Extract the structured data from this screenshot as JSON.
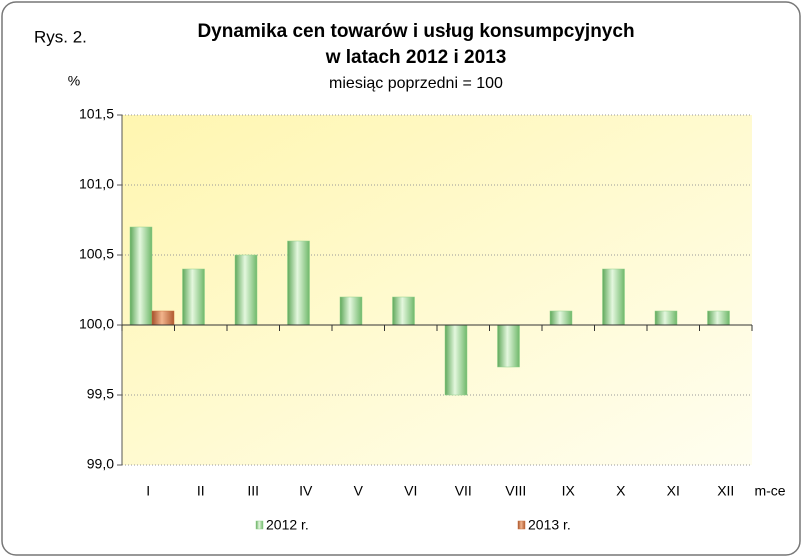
{
  "chart_data": {
    "type": "bar",
    "label": "Rys. 2.",
    "title": [
      "Dynamika cen towarów i usług konsumpcyjnych",
      "w latach 2012 i 2013"
    ],
    "subtitle": "miesiąc poprzedni = 100",
    "y_label": "%",
    "x_label": "m-ce",
    "categories": [
      "I",
      "II",
      "III",
      "IV",
      "V",
      "VI",
      "VII",
      "VIII",
      "IX",
      "X",
      "XI",
      "XII"
    ],
    "series": [
      {
        "name": "2012 r.",
        "color": "#8fd18a",
        "values": [
          100.7,
          100.4,
          100.5,
          100.6,
          100.2,
          100.2,
          99.5,
          99.7,
          100.1,
          100.4,
          100.1,
          100.1
        ]
      },
      {
        "name": "2013 r.",
        "color": "#c9703c",
        "values": [
          100.1,
          null,
          null,
          null,
          null,
          null,
          null,
          null,
          null,
          null,
          null,
          null
        ]
      }
    ],
    "ylim": [
      99.0,
      101.5
    ],
    "yticks": [
      {
        "value": 99.0,
        "label": "99,0"
      },
      {
        "value": 99.5,
        "label": "99,5"
      },
      {
        "value": 100.0,
        "label": "100,0"
      },
      {
        "value": 100.5,
        "label": "100,5"
      },
      {
        "value": 101.0,
        "label": "101,0"
      },
      {
        "value": 101.5,
        "label": "101,5"
      }
    ],
    "baseline": 100.0,
    "grid": true,
    "legend": "bottom"
  }
}
